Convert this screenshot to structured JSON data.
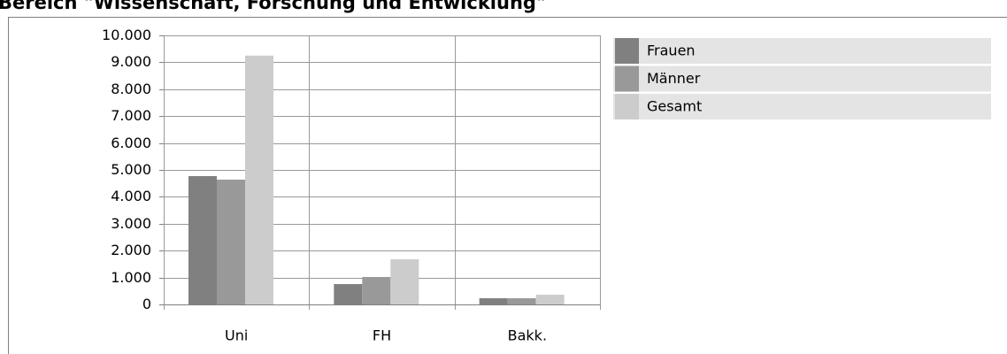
{
  "chart_data": {
    "type": "bar",
    "title": "Bereich \"Wissenschaft, Forschung und Entwicklung\"",
    "categories": [
      "Uni",
      "FH",
      "Bakk."
    ],
    "series": [
      {
        "name": "Frauen",
        "color": "#808080",
        "values": [
          4770,
          757,
          230
        ]
      },
      {
        "name": "Männer",
        "color": "#999999",
        "values": [
          4640,
          1020,
          230
        ]
      },
      {
        "name": "Gesamt",
        "color": "#cccccc",
        "values": [
          9250,
          1678,
          360
        ]
      }
    ],
    "ylim": [
      0,
      10000
    ],
    "yticks": [
      0,
      {
        "value": 1000,
        "label": "1.000"
      },
      {
        "value": 2000,
        "label": "2.000"
      },
      {
        "value": 3000,
        "label": "3.000"
      },
      {
        "value": 4000,
        "label": "4.000"
      },
      {
        "value": 5000,
        "label": "5.000"
      },
      {
        "value": 6000,
        "label": "6.000"
      },
      {
        "value": 7000,
        "label": "7.000"
      },
      {
        "value": 8000,
        "label": "8.000"
      },
      {
        "value": 9000,
        "label": "9.000"
      },
      {
        "value": 10000,
        "label": "10.000"
      }
    ],
    "grid": true,
    "legend": "right"
  }
}
